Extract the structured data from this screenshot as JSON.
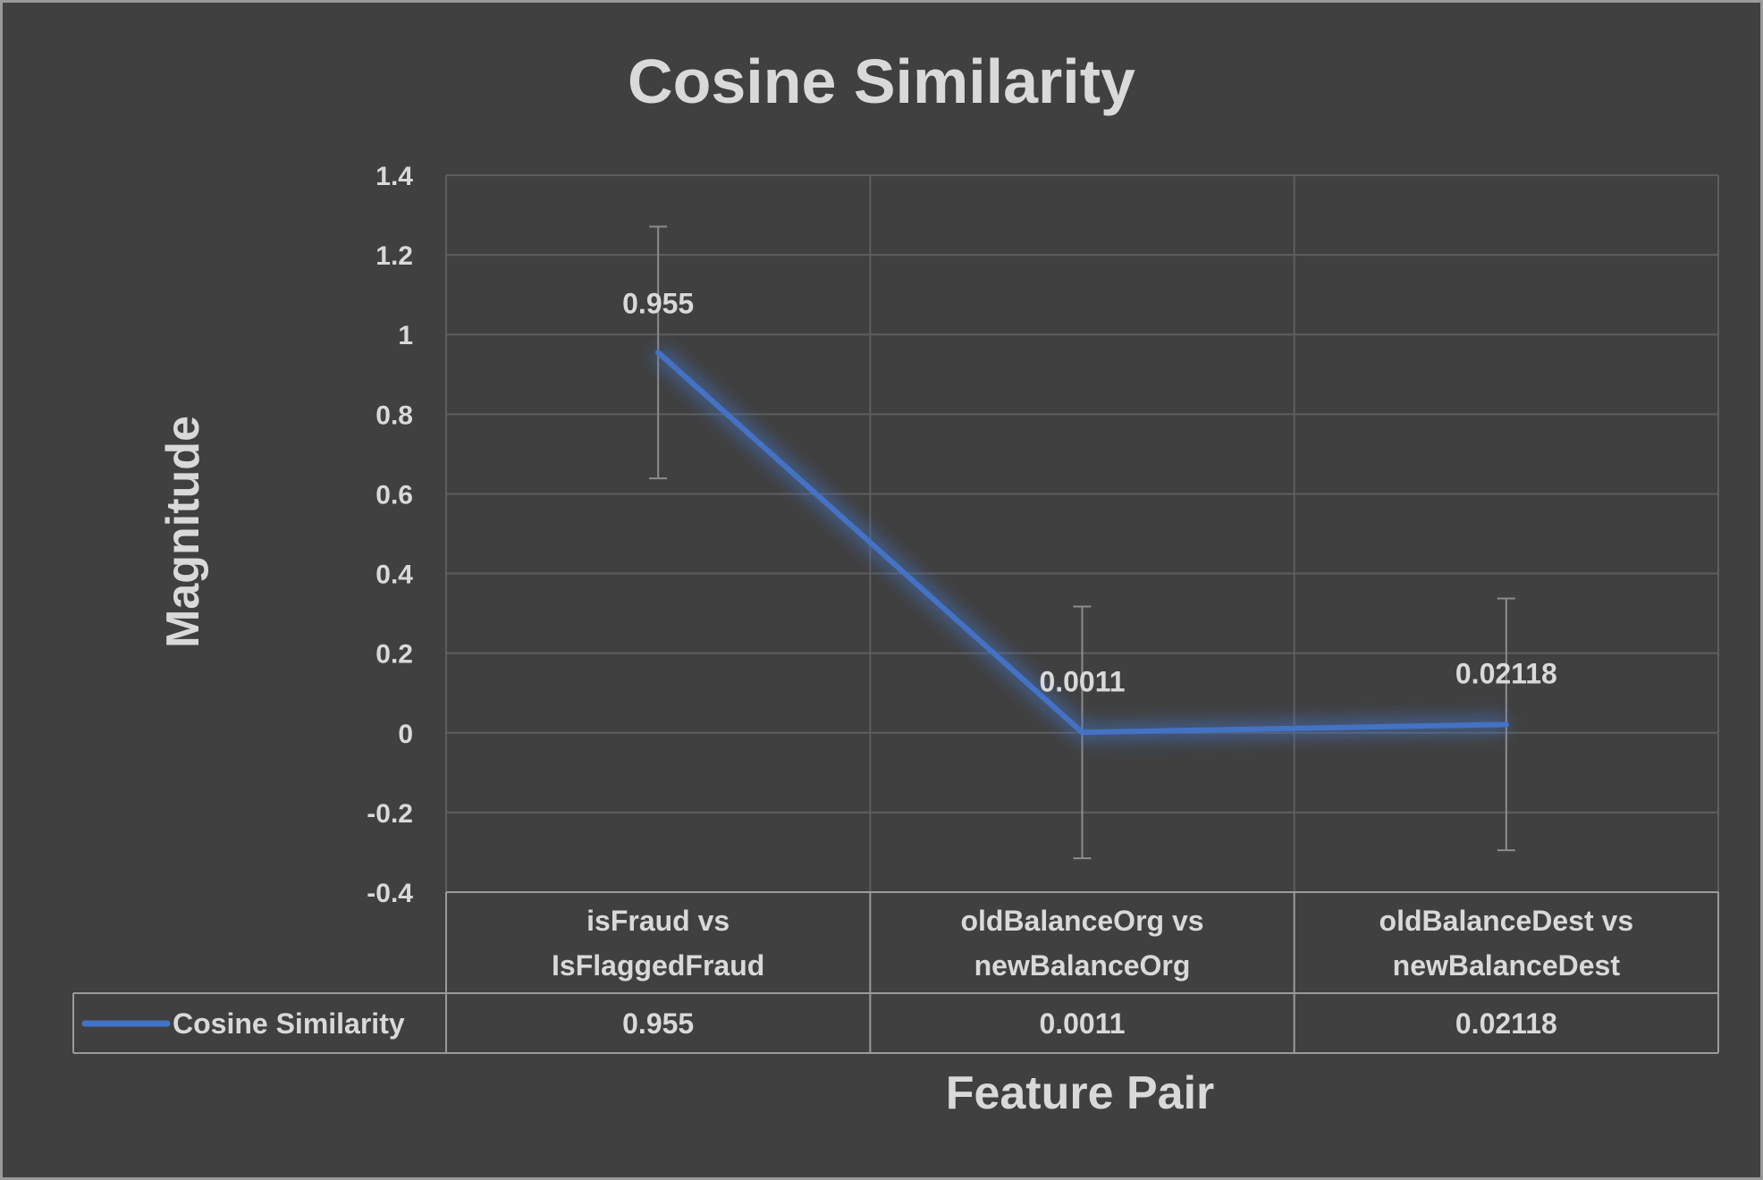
{
  "chart_data": {
    "type": "line",
    "title": "Cosine Similarity",
    "xlabel": "Feature Pair",
    "ylabel": "Magnitude",
    "ylim": [
      -0.4,
      1.4
    ],
    "ytick_step": 0.2,
    "yticks": [
      "1.4",
      "1.2",
      "1",
      "0.8",
      "0.6",
      "0.4",
      "0.2",
      "0",
      "-0.2",
      "-0.4"
    ],
    "categories": [
      [
        "isFraud vs",
        "IsFlaggedFraud"
      ],
      [
        "oldBalanceOrg vs",
        "newBalanceOrg"
      ],
      [
        "oldBalanceDest vs",
        "newBalanceDest"
      ]
    ],
    "series": [
      {
        "name": "Cosine Similarity",
        "values": [
          0.955,
          0.0011,
          0.02118
        ],
        "value_labels": [
          "0.955",
          "0.0011",
          "0.02118"
        ],
        "color": "#4472c4",
        "error_bar": 0.316
      }
    ],
    "grid": true,
    "legend": "data-table",
    "data_table": true
  }
}
